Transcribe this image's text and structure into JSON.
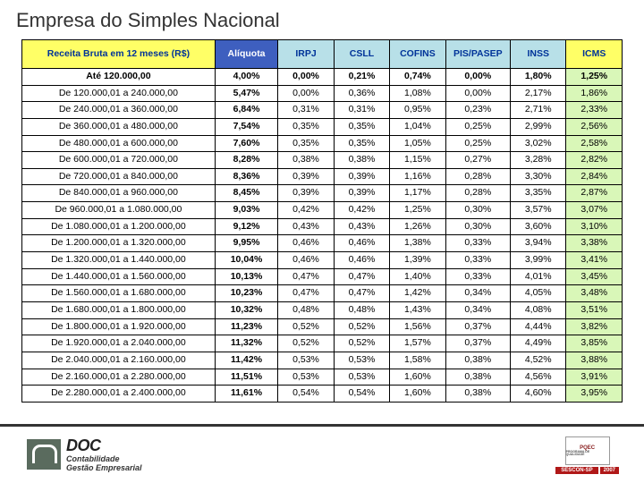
{
  "title": "Empresa do Simples Nacional",
  "table": {
    "header_colors": {
      "receita": "#ffff66",
      "aliquota": "#3e5fbf",
      "irpj": "#b8e0e8",
      "csll": "#b8e0e8",
      "cofins": "#b8e0e8",
      "pis": "#b8e0e8",
      "inss": "#b8e0e8",
      "icms": "#ffff66"
    },
    "header_text_colors": {
      "receita": "#003399",
      "aliquota": "#ffffff",
      "default": "#003399"
    },
    "icms_col_bg": "#d9f7b8",
    "columns": [
      {
        "key": "receita",
        "label": "Receita Bruta em 12 meses (R$)"
      },
      {
        "key": "aliquota",
        "label": "Alíquota"
      },
      {
        "key": "irpj",
        "label": "IRPJ"
      },
      {
        "key": "csll",
        "label": "CSLL"
      },
      {
        "key": "cofins",
        "label": "COFINS"
      },
      {
        "key": "pis",
        "label": "PIS/PASEP"
      },
      {
        "key": "inss",
        "label": "INSS"
      },
      {
        "key": "icms",
        "label": "ICMS"
      }
    ],
    "rows": [
      [
        "Até 120.000,00",
        "4,00%",
        "0,00%",
        "0,21%",
        "0,74%",
        "0,00%",
        "1,80%",
        "1,25%"
      ],
      [
        "De 120.000,01 a 240.000,00",
        "5,47%",
        "0,00%",
        "0,36%",
        "1,08%",
        "0,00%",
        "2,17%",
        "1,86%"
      ],
      [
        "De 240.000,01 a 360.000,00",
        "6,84%",
        "0,31%",
        "0,31%",
        "0,95%",
        "0,23%",
        "2,71%",
        "2,33%"
      ],
      [
        "De 360.000,01 a 480.000,00",
        "7,54%",
        "0,35%",
        "0,35%",
        "1,04%",
        "0,25%",
        "2,99%",
        "2,56%"
      ],
      [
        "De 480.000,01 a 600.000,00",
        "7,60%",
        "0,35%",
        "0,35%",
        "1,05%",
        "0,25%",
        "3,02%",
        "2,58%"
      ],
      [
        "De 600.000,01 a 720.000,00",
        "8,28%",
        "0,38%",
        "0,38%",
        "1,15%",
        "0,27%",
        "3,28%",
        "2,82%"
      ],
      [
        "De 720.000,01 a 840.000,00",
        "8,36%",
        "0,39%",
        "0,39%",
        "1,16%",
        "0,28%",
        "3,30%",
        "2,84%"
      ],
      [
        "De 840.000,01 a 960.000,00",
        "8,45%",
        "0,39%",
        "0,39%",
        "1,17%",
        "0,28%",
        "3,35%",
        "2,87%"
      ],
      [
        "De 960.000,01 a 1.080.000,00",
        "9,03%",
        "0,42%",
        "0,42%",
        "1,25%",
        "0,30%",
        "3,57%",
        "3,07%"
      ],
      [
        "De 1.080.000,01 a 1.200.000,00",
        "9,12%",
        "0,43%",
        "0,43%",
        "1,26%",
        "0,30%",
        "3,60%",
        "3,10%"
      ],
      [
        "De 1.200.000,01 a 1.320.000,00",
        "9,95%",
        "0,46%",
        "0,46%",
        "1,38%",
        "0,33%",
        "3,94%",
        "3,38%"
      ],
      [
        "De 1.320.000,01 a 1.440.000,00",
        "10,04%",
        "0,46%",
        "0,46%",
        "1,39%",
        "0,33%",
        "3,99%",
        "3,41%"
      ],
      [
        "De 1.440.000,01 a 1.560.000,00",
        "10,13%",
        "0,47%",
        "0,47%",
        "1,40%",
        "0,33%",
        "4,01%",
        "3,45%"
      ],
      [
        "De 1.560.000,01 a 1.680.000,00",
        "10,23%",
        "0,47%",
        "0,47%",
        "1,42%",
        "0,34%",
        "4,05%",
        "3,48%"
      ],
      [
        "De 1.680.000,01 a 1.800.000,00",
        "10,32%",
        "0,48%",
        "0,48%",
        "1,43%",
        "0,34%",
        "4,08%",
        "3,51%"
      ],
      [
        "De 1.800.000,01 a 1.920.000,00",
        "11,23%",
        "0,52%",
        "0,52%",
        "1,56%",
        "0,37%",
        "4,44%",
        "3,82%"
      ],
      [
        "De 1.920.000,01 a 2.040.000,00",
        "11,32%",
        "0,52%",
        "0,52%",
        "1,57%",
        "0,37%",
        "4,49%",
        "3,85%"
      ],
      [
        "De 2.040.000,01 a 2.160.000,00",
        "11,42%",
        "0,53%",
        "0,53%",
        "1,58%",
        "0,38%",
        "4,52%",
        "3,88%"
      ],
      [
        "De 2.160.000,01 a 2.280.000,00",
        "11,51%",
        "0,53%",
        "0,53%",
        "1,60%",
        "0,38%",
        "4,56%",
        "3,91%"
      ],
      [
        "De 2.280.000,01 a 2.400.000,00",
        "11,61%",
        "0,54%",
        "0,54%",
        "1,60%",
        "0,38%",
        "4,60%",
        "3,95%"
      ]
    ]
  },
  "footer": {
    "left_brand": "DOC",
    "left_sub1": "Contabilidade",
    "left_sub2": "Gestão Empresarial",
    "right_label": "PQEC",
    "right_bar": "SESCON-SP",
    "right_year": "2007"
  }
}
